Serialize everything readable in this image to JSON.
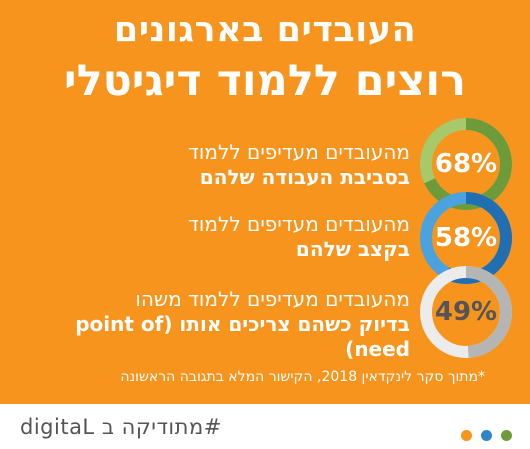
{
  "header": {
    "title_line1": "העובדים בארגונים",
    "title_line2": "רוצים ללמוד דיגיטלי"
  },
  "stats": [
    {
      "line1": "מהעובדים מעדיפים ללמוד",
      "line2": "בסביבת העבודה שלהם",
      "percent_label": "68%",
      "percent_value": 68,
      "ring_color": "#6d9b3a",
      "ring_light": "#a7c96a"
    },
    {
      "line1": "מהעובדים מעדיפים ללמוד",
      "line2": "בקצב שלהם",
      "percent_label": "58%",
      "percent_value": 58,
      "ring_color": "#1f6fb2",
      "ring_light": "#4aa3df"
    },
    {
      "line1": "מהעובדים מעדיפים ללמוד משהו",
      "line2": "בדיוק כשהם צריכים אותו (point of need)",
      "percent_label": "49%",
      "percent_value": 49,
      "ring_color": "#b5b5b5",
      "ring_light": "#ececec"
    }
  ],
  "footnote": "*מתוך סקר לינקדאין 2018, הקישור המלא בתגובה הראשונה",
  "footer": {
    "brand": "digitaL",
    "hashtag": "#מתודיקה ב",
    "dot_colors": [
      "#f7941d",
      "#2e86c8",
      "#6d9b3a"
    ]
  }
}
